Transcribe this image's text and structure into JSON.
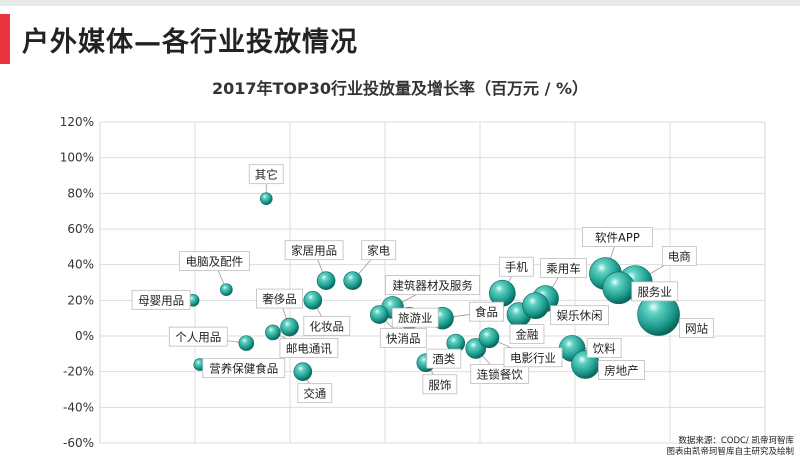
{
  "header": {
    "title": "户外媒体—各行业投放情况"
  },
  "source": {
    "line1": "数据来源：CODC/ 凯帝珂智库",
    "line2": "图表由凯帝珂智库自主研究及绘制"
  },
  "colors": {
    "accent": "#e8353d",
    "bubble": "#1fa89a",
    "bubble_dark": "#0a5f56"
  },
  "chart_data": {
    "type": "scatter",
    "title": "2017年TOP30行业投放量及增长率（百万元 / %）",
    "xlabel": "",
    "ylabel": "",
    "ylim": [
      -60,
      120
    ],
    "y_ticks": [
      "120%",
      "100%",
      "80%",
      "60%",
      "40%",
      "20%",
      "0%",
      "-20%",
      "-40%",
      "-60%"
    ],
    "grid": true,
    "points": [
      {
        "label": "其它",
        "x": 0.25,
        "y": 77,
        "size": 1
      },
      {
        "label": "电脑及配件",
        "x": 0.19,
        "y": 26,
        "size": 1
      },
      {
        "label": "母婴用品",
        "x": 0.14,
        "y": 20,
        "size": 1
      },
      {
        "label": "个人用品",
        "x": 0.22,
        "y": -4,
        "size": 1.3
      },
      {
        "label": "营养保健食品",
        "x": 0.15,
        "y": -16,
        "size": 1
      },
      {
        "label": "奢侈品",
        "x": 0.285,
        "y": 5,
        "size": 1.6
      },
      {
        "label": "邮电通讯",
        "x": 0.26,
        "y": 2,
        "size": 1.3
      },
      {
        "label": "交通",
        "x": 0.305,
        "y": -20,
        "size": 1.6
      },
      {
        "label": "家居用品",
        "x": 0.34,
        "y": 31,
        "size": 1.6
      },
      {
        "label": "家电",
        "x": 0.38,
        "y": 31,
        "size": 1.6
      },
      {
        "label": "化妆品",
        "x": 0.32,
        "y": 20,
        "size": 1.6
      },
      {
        "label": "建筑器材及服务",
        "x": 0.44,
        "y": 16,
        "size": 2
      },
      {
        "label": "快消品",
        "x": 0.42,
        "y": 12,
        "size": 1.6
      },
      {
        "label": "旅游业",
        "x": 0.465,
        "y": 10,
        "size": 2
      },
      {
        "label": "食品",
        "x": 0.515,
        "y": 10,
        "size": 2
      },
      {
        "label": "服饰",
        "x": 0.49,
        "y": -15,
        "size": 1.6
      },
      {
        "label": "酒类",
        "x": 0.535,
        "y": -4,
        "size": 1.6
      },
      {
        "label": "连锁餐饮",
        "x": 0.565,
        "y": -7,
        "size": 1.8
      },
      {
        "label": "电影行业",
        "x": 0.585,
        "y": -1,
        "size": 1.8
      },
      {
        "label": "手机",
        "x": 0.605,
        "y": 24,
        "size": 2.4
      },
      {
        "label": "金融",
        "x": 0.63,
        "y": 12,
        "size": 2.2
      },
      {
        "label": "乘用车",
        "x": 0.67,
        "y": 21,
        "size": 2.4
      },
      {
        "label": "娱乐休闲",
        "x": 0.655,
        "y": 17,
        "size": 2.4
      },
      {
        "label": "饮料",
        "x": 0.71,
        "y": -7,
        "size": 2.4
      },
      {
        "label": "房地产",
        "x": 0.73,
        "y": -16,
        "size": 2.6
      },
      {
        "label": "软件APP",
        "x": 0.76,
        "y": 35,
        "size": 3
      },
      {
        "label": "电商",
        "x": 0.805,
        "y": 30,
        "size": 3.2
      },
      {
        "label": "服务业",
        "x": 0.78,
        "y": 27,
        "size": 3
      },
      {
        "label": "网站",
        "x": 0.84,
        "y": 12,
        "size": 4
      }
    ]
  }
}
